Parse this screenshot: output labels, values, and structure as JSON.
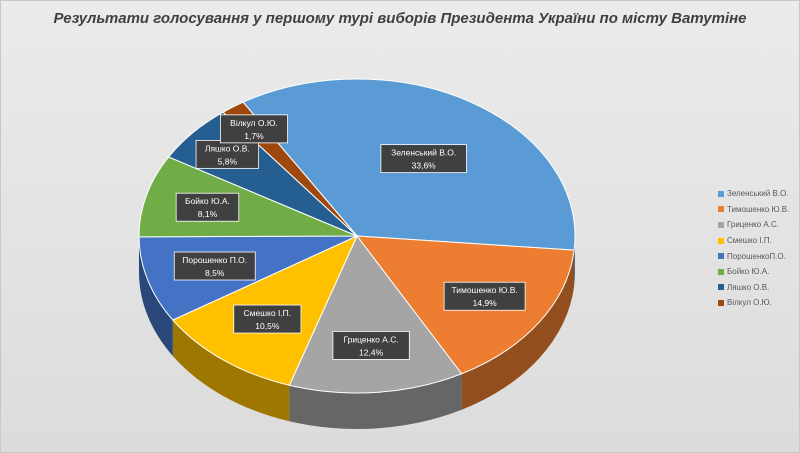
{
  "chart_data": {
    "type": "pie",
    "title": "Результати голосування у першому турі виборів Президента України по місту Ватутіне",
    "categories": [
      "Зеленський В.О.",
      "Тимошенко Ю.В.",
      "Гриценко А.С.",
      "Смешко І.П.",
      "Порошенко П.О.",
      "Бойко Ю.А.",
      "Ляшко О.В.",
      "Вілкул О.Ю."
    ],
    "labels": [
      "Зеленський  В.О.",
      "Тимошенко  Ю.В.",
      "Гриценко  А.С.",
      "Смешко  І.П.",
      "Порошенко  П.О.",
      "Бойко  Ю.А.",
      "Ляшко  О.В.",
      "Вілкул  О.Ю."
    ],
    "values": [
      33.6,
      14.9,
      12.4,
      10.5,
      8.5,
      8.1,
      5.8,
      1.7
    ],
    "value_labels": [
      "33,6%",
      "14,9%",
      "12,4%",
      "10,5%",
      "8,5%",
      "8,1%",
      "5,8%",
      "1,7%"
    ],
    "legend_labels": [
      "Зеленський В.О.",
      "Тимошенко Ю.В.",
      "Гриценко А.С.",
      "Смешко І.П.",
      "ПорошенкоП.О.",
      "Бойко Ю.А.",
      "Ляшко О.В.",
      "Вілкул О.Ю."
    ],
    "colors": [
      "#5b9bd5",
      "#ed7d31",
      "#a5a5a5",
      "#ffc000",
      "#4472c4",
      "#70ad47",
      "#255e91",
      "#9e480e"
    ],
    "legend_position": "right",
    "style": "3d-pie"
  }
}
